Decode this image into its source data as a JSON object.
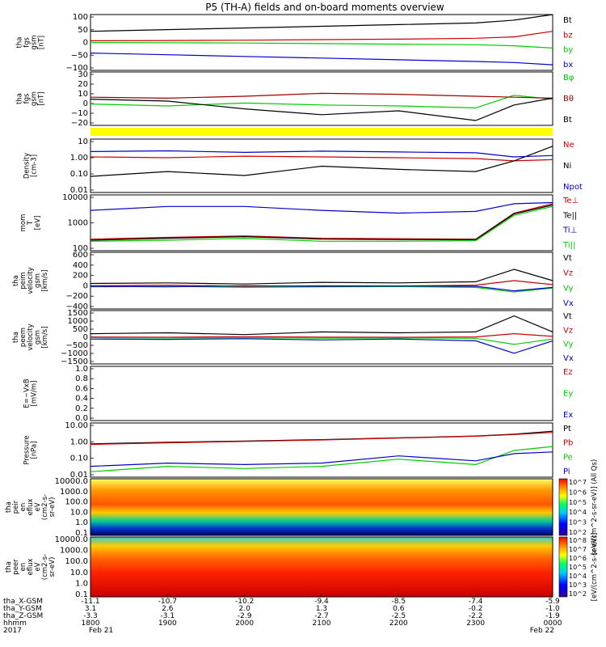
{
  "title": "P5 (TH-A) fields and on-board moments overview",
  "chart_data": [
    {
      "type": "line",
      "panel": "fgs_gsm",
      "ylabel": [
        "tha",
        "fgs",
        "gsm",
        "[nT]"
      ],
      "ylim": [
        -100,
        100
      ],
      "yticks": [
        "100",
        "50",
        "0",
        "−50",
        "−100"
      ],
      "series": [
        {
          "name": "Bt",
          "color": "#000000",
          "x": [
            18.0,
            19.0,
            20.0,
            21.0,
            22.0,
            23.0,
            23.5,
            24.0
          ],
          "y": [
            40,
            46,
            52,
            58,
            64,
            70,
            80,
            100
          ]
        },
        {
          "name": "bz",
          "color": "#cc0000",
          "x": [
            18.0,
            19.0,
            20.0,
            21.0,
            22.0,
            23.0,
            23.5,
            24.0
          ],
          "y": [
            6,
            7,
            8,
            10,
            12,
            15,
            20,
            40
          ]
        },
        {
          "name": "by",
          "color": "#00cc00",
          "x": [
            18.0,
            19.0,
            20.0,
            21.0,
            22.0,
            23.0,
            23.5,
            24.0
          ],
          "y": [
            0,
            -1,
            -2,
            -4,
            -6,
            -8,
            -12,
            -20
          ]
        },
        {
          "name": "bx",
          "color": "#0000cc",
          "x": [
            18.0,
            19.0,
            20.0,
            21.0,
            22.0,
            23.0,
            23.5,
            24.0
          ],
          "y": [
            -38,
            -44,
            -50,
            -56,
            -62,
            -68,
            -72,
            -80
          ]
        }
      ]
    },
    {
      "type": "line",
      "panel": "fgs_gsm_dp",
      "ylabel": [
        "tha",
        "fgs",
        "gsm",
        "[nT]"
      ],
      "ylim": [
        -25,
        30
      ],
      "yticks": [
        "30",
        "20",
        "10",
        "0",
        "−10",
        "−20"
      ],
      "series": [
        {
          "name": "Bφ",
          "color": "#00cc00",
          "x": [
            18.0,
            19.0,
            20.0,
            21.0,
            22.0,
            23.0,
            23.5,
            24.0
          ],
          "y": [
            -3,
            -5,
            -2,
            -4,
            -5,
            -7,
            6,
            2
          ]
        },
        {
          "name": "Bθ",
          "color": "#990000",
          "x": [
            18.0,
            19.0,
            20.0,
            21.0,
            22.0,
            23.0,
            23.5,
            24.0
          ],
          "y": [
            4,
            3,
            5,
            8,
            7,
            5,
            4,
            3
          ]
        },
        {
          "name": "Bt",
          "color": "#000000",
          "x": [
            18.0,
            19.0,
            20.0,
            21.0,
            22.0,
            23.0,
            23.5,
            24.0
          ],
          "y": [
            2,
            0,
            -8,
            -14,
            -10,
            -20,
            -4,
            3
          ]
        }
      ]
    },
    {
      "type": "line",
      "panel": "density",
      "log": true,
      "ylabel": [
        "Density",
        "[cm-3]"
      ],
      "ylim": [
        0.01,
        10
      ],
      "yticks": [
        "10",
        "1.00",
        "0.10",
        "0.01"
      ],
      "series": [
        {
          "name": "Ne",
          "color": "#cc0000",
          "x": [
            18.0,
            19.0,
            20.0,
            21.0,
            22.0,
            23.0,
            23.5,
            24.0
          ],
          "y": [
            1.0,
            0.9,
            1.1,
            1.0,
            0.9,
            0.8,
            0.6,
            0.7
          ]
        },
        {
          "name": "Ni",
          "color": "#000000",
          "x": [
            18.0,
            19.0,
            20.0,
            21.0,
            22.0,
            23.0,
            23.5,
            24.0
          ],
          "y": [
            0.08,
            0.15,
            0.09,
            0.3,
            0.2,
            0.15,
            0.6,
            4.0
          ]
        },
        {
          "name": "Npot",
          "color": "#0000cc",
          "x": [
            18.0,
            19.0,
            20.0,
            21.0,
            22.0,
            23.0,
            23.5,
            24.0
          ],
          "y": [
            2.0,
            2.2,
            1.8,
            2.1,
            1.9,
            1.7,
            1.0,
            1.2
          ]
        }
      ]
    },
    {
      "type": "line",
      "panel": "temperature",
      "log": true,
      "ylabel": [
        "mom",
        "T",
        "[eV]"
      ],
      "ylim": [
        30,
        10000
      ],
      "yticks": [
        "10000",
        "1000",
        "100"
      ],
      "series": [
        {
          "name": "Te⊥",
          "color": "#cc0000",
          "x": [
            18.0,
            19.0,
            20.0,
            21.0,
            22.0,
            23.0,
            23.5,
            24.0
          ],
          "y": [
            100,
            120,
            140,
            110,
            105,
            100,
            1500,
            4000
          ]
        },
        {
          "name": "Te||",
          "color": "#000000",
          "x": [
            18.0,
            19.0,
            20.0,
            21.0,
            22.0,
            23.0,
            23.5,
            24.0
          ],
          "y": [
            90,
            110,
            130,
            100,
            95,
            95,
            1400,
            3500
          ]
        },
        {
          "name": "Ti⊥",
          "color": "#0000cc",
          "x": [
            18.0,
            19.0,
            20.0,
            21.0,
            22.0,
            23.0,
            23.5,
            24.0
          ],
          "y": [
            2000,
            3000,
            3000,
            2000,
            1500,
            1800,
            4000,
            4500
          ]
        },
        {
          "name": "Ti||",
          "color": "#00cc00",
          "x": [
            18.0,
            19.0,
            20.0,
            21.0,
            22.0,
            23.0,
            23.5,
            24.0
          ],
          "y": [
            80,
            90,
            110,
            80,
            80,
            85,
            1200,
            3000
          ]
        }
      ]
    },
    {
      "type": "line",
      "panel": "ion_velocity",
      "ylabel": [
        "tha",
        "peim",
        "velocity",
        "gsm",
        "[km/s]"
      ],
      "ylim": [
        -400,
        600
      ],
      "yticks": [
        "600",
        "400",
        "200",
        "0",
        "−200",
        "−400"
      ],
      "series": [
        {
          "name": "Vt",
          "color": "#000000",
          "x": [
            18.0,
            19.0,
            20.0,
            21.0,
            22.0,
            23.0,
            23.5,
            24.0
          ],
          "y": [
            50,
            60,
            40,
            70,
            60,
            80,
            300,
            100
          ]
        },
        {
          "name": "Vz",
          "color": "#cc0000",
          "x": [
            18.0,
            19.0,
            20.0,
            21.0,
            22.0,
            23.0,
            23.5,
            24.0
          ],
          "y": [
            10,
            20,
            0,
            10,
            5,
            20,
            100,
            30
          ]
        },
        {
          "name": "Vy",
          "color": "#00cc00",
          "x": [
            18.0,
            19.0,
            20.0,
            21.0,
            22.0,
            23.0,
            23.5,
            24.0
          ],
          "y": [
            -10,
            0,
            -20,
            -10,
            -5,
            -20,
            -100,
            -30
          ]
        },
        {
          "name": "Vx",
          "color": "#0000cc",
          "x": [
            18.0,
            19.0,
            20.0,
            21.0,
            22.0,
            23.0,
            23.5,
            24.0
          ],
          "y": [
            0,
            -10,
            10,
            0,
            5,
            0,
            -80,
            -20
          ]
        }
      ]
    },
    {
      "type": "line",
      "panel": "electron_velocity",
      "ylabel": [
        "tha",
        "peem",
        "velocity",
        "gsm",
        "[km/s]"
      ],
      "ylim": [
        -1500,
        1500
      ],
      "yticks": [
        "1500",
        "1000",
        "500",
        "0",
        "−500",
        "−1000",
        "−1500"
      ],
      "series": [
        {
          "name": "Vt",
          "color": "#000000",
          "x": [
            18.0,
            19.0,
            20.0,
            21.0,
            22.0,
            23.0,
            23.5,
            24.0
          ],
          "y": [
            200,
            250,
            150,
            300,
            250,
            300,
            1200,
            300
          ]
        },
        {
          "name": "Vz",
          "color": "#cc0000",
          "x": [
            18.0,
            19.0,
            20.0,
            21.0,
            22.0,
            23.0,
            23.5,
            24.0
          ],
          "y": [
            20,
            0,
            30,
            10,
            0,
            20,
            200,
            50
          ]
        },
        {
          "name": "Vy",
          "color": "#00cc00",
          "x": [
            18.0,
            19.0,
            20.0,
            21.0,
            22.0,
            23.0,
            23.5,
            24.0
          ],
          "y": [
            -20,
            -40,
            -30,
            -50,
            -40,
            -60,
            -400,
            -100
          ]
        },
        {
          "name": "Vx",
          "color": "#0000cc",
          "x": [
            18.0,
            19.0,
            20.0,
            21.0,
            22.0,
            23.0,
            23.5,
            24.0
          ],
          "y": [
            -100,
            -120,
            -80,
            -150,
            -100,
            -200,
            -900,
            -200
          ]
        }
      ]
    },
    {
      "type": "line",
      "panel": "efield",
      "ylabel": [
        "E=−VxB",
        "[mV/m]"
      ],
      "ylim": [
        0,
        1
      ],
      "yticks": [
        "1.0",
        "0.8",
        "0.6",
        "0.4",
        "0.2",
        "0.0"
      ],
      "series": [
        {
          "name": "Ez",
          "color": "#cc0000",
          "x": [],
          "y": []
        },
        {
          "name": "Ey",
          "color": "#00cc00",
          "x": [],
          "y": []
        },
        {
          "name": "Ex",
          "color": "#0000cc",
          "x": [],
          "y": []
        }
      ]
    },
    {
      "type": "line",
      "panel": "pressure",
      "log": true,
      "ylabel": [
        "Pressure",
        "[nPa]"
      ],
      "ylim": [
        0.01,
        10
      ],
      "yticks": [
        "10.00",
        "1.00",
        "0.10",
        "0.01"
      ],
      "series": [
        {
          "name": "Pt",
          "color": "#000000",
          "x": [
            18.0,
            19.0,
            20.0,
            21.0,
            22.0,
            23.0,
            23.5,
            24.0
          ],
          "y": [
            0.7,
            0.85,
            1.0,
            1.2,
            1.5,
            1.9,
            2.4,
            3.5
          ]
        },
        {
          "name": "Pb",
          "color": "#cc0000",
          "x": [
            18.0,
            19.0,
            20.0,
            21.0,
            22.0,
            23.0,
            23.5,
            24.0
          ],
          "y": [
            0.65,
            0.8,
            0.95,
            1.15,
            1.45,
            1.85,
            2.3,
            3.0
          ]
        },
        {
          "name": "Pe",
          "color": "#00cc00",
          "x": [
            18.0,
            19.0,
            20.0,
            21.0,
            22.0,
            23.0,
            23.5,
            24.0
          ],
          "y": [
            0.02,
            0.04,
            0.03,
            0.04,
            0.1,
            0.05,
            0.3,
            0.5
          ]
        },
        {
          "name": "Pi",
          "color": "#0000cc",
          "x": [
            18.0,
            19.0,
            20.0,
            21.0,
            22.0,
            23.0,
            23.5,
            24.0
          ],
          "y": [
            0.04,
            0.06,
            0.05,
            0.06,
            0.15,
            0.08,
            0.2,
            0.25
          ]
        }
      ]
    },
    {
      "type": "heatmap",
      "panel": "ion_spectrogram",
      "ylabel": [
        "tha",
        "peir",
        "en",
        "eflux",
        "eV",
        "(cm2-s-",
        "sr-eV)"
      ],
      "yticks": [
        "10000.0",
        "1000.0",
        "100.0",
        "10.0",
        "1.0",
        "0.1"
      ],
      "colorbar": {
        "label": "[eV/(cm^2-s-sr-eV)] (All Qs)",
        "ticks": [
          "10^7",
          "10^6",
          "10^5",
          "10^4",
          "10^3",
          "10^2"
        ]
      }
    },
    {
      "type": "heatmap",
      "panel": "electron_spectrogram",
      "ylabel": [
        "tha",
        "peer",
        "en",
        "eflux",
        "eV",
        "(cm2-s-",
        "sr-eV)"
      ],
      "yticks": [
        "10000.0",
        "1000.0",
        "100.0",
        "10.0",
        "1.0",
        "0.1"
      ],
      "colorbar": {
        "label": "[eV/(cm^2-s-sr-eV)]",
        "ticks": [
          "10^8",
          "10^7",
          "10^6",
          "10^5",
          "10^4",
          "10^3",
          "10^2"
        ]
      }
    }
  ],
  "time_axis": {
    "row_labels": [
      "tha_X-GSM",
      "tha_Y-GSM",
      "tha_Z-GSM",
      "hhmm",
      "2017"
    ],
    "columns": [
      {
        "hour": 18,
        "x_gsm": "-11.1",
        "y_gsm": "3.1",
        "z_gsm": "-3.3",
        "hhmm": "1800",
        "date": "Feb 21"
      },
      {
        "hour": 19,
        "x_gsm": "-10.7",
        "y_gsm": "2.6",
        "z_gsm": "-3.1",
        "hhmm": "1900",
        "date": ""
      },
      {
        "hour": 20,
        "x_gsm": "-10.2",
        "y_gsm": "2.0",
        "z_gsm": "-2.9",
        "hhmm": "2000",
        "date": ""
      },
      {
        "hour": 21,
        "x_gsm": "-9.4",
        "y_gsm": "1.3",
        "z_gsm": "-2.7",
        "hhmm": "2100",
        "date": ""
      },
      {
        "hour": 22,
        "x_gsm": "-8.5",
        "y_gsm": "0.6",
        "z_gsm": "-2.5",
        "hhmm": "2200",
        "date": ""
      },
      {
        "hour": 23,
        "x_gsm": "-7.4",
        "y_gsm": "-0.2",
        "z_gsm": "-2.2",
        "hhmm": "2300",
        "date": ""
      },
      {
        "hour": 24,
        "x_gsm": "-5.9",
        "y_gsm": "-1.0",
        "z_gsm": "-1.9",
        "hhmm": "0000",
        "date": "Feb 22"
      }
    ]
  },
  "status_bar": {
    "color": "#ffff00"
  }
}
